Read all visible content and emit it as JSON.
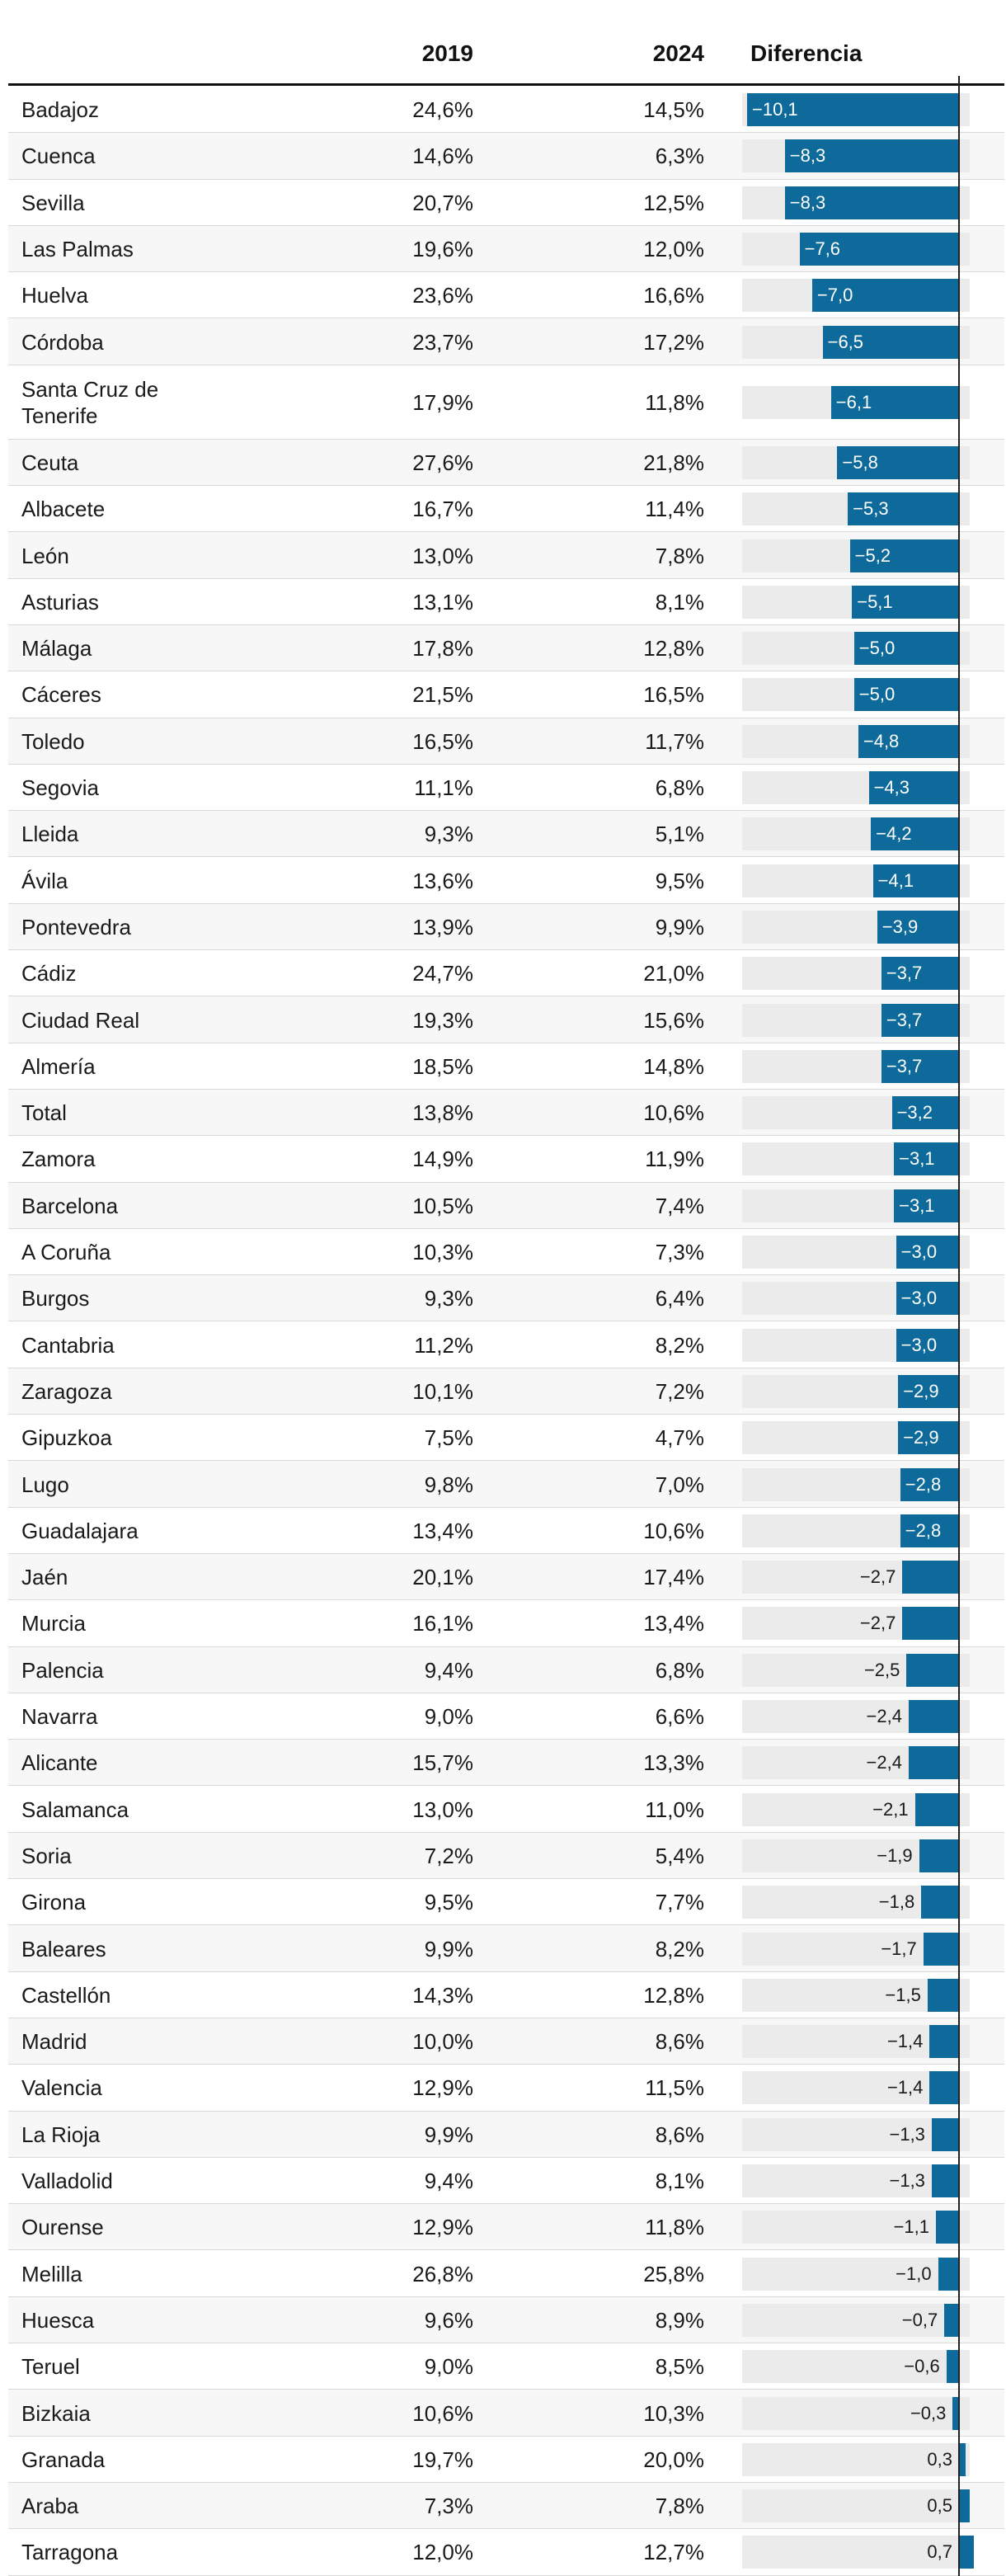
{
  "chart_data": {
    "type": "table",
    "columns": [
      "",
      "2019",
      "2024",
      "Diferencia"
    ],
    "rows": [
      {
        "name": "Badajoz",
        "y2019": "24,6%",
        "y2024": "14,5%",
        "diff": -10.1,
        "diff_label": "−10,1"
      },
      {
        "name": "Cuenca",
        "y2019": "14,6%",
        "y2024": "6,3%",
        "diff": -8.3,
        "diff_label": "−8,3"
      },
      {
        "name": "Sevilla",
        "y2019": "20,7%",
        "y2024": "12,5%",
        "diff": -8.3,
        "diff_label": "−8,3"
      },
      {
        "name": "Las Palmas",
        "y2019": "19,6%",
        "y2024": "12,0%",
        "diff": -7.6,
        "diff_label": "−7,6"
      },
      {
        "name": "Huelva",
        "y2019": "23,6%",
        "y2024": "16,6%",
        "diff": -7.0,
        "diff_label": "−7,0"
      },
      {
        "name": "Córdoba",
        "y2019": "23,7%",
        "y2024": "17,2%",
        "diff": -6.5,
        "diff_label": "−6,5"
      },
      {
        "name": "Santa Cruz de\nTenerife",
        "y2019": "17,9%",
        "y2024": "11,8%",
        "diff": -6.1,
        "diff_label": "−6,1"
      },
      {
        "name": "Ceuta",
        "y2019": "27,6%",
        "y2024": "21,8%",
        "diff": -5.8,
        "diff_label": "−5,8"
      },
      {
        "name": "Albacete",
        "y2019": "16,7%",
        "y2024": "11,4%",
        "diff": -5.3,
        "diff_label": "−5,3"
      },
      {
        "name": "León",
        "y2019": "13,0%",
        "y2024": "7,8%",
        "diff": -5.2,
        "diff_label": "−5,2"
      },
      {
        "name": "Asturias",
        "y2019": "13,1%",
        "y2024": "8,1%",
        "diff": -5.1,
        "diff_label": "−5,1"
      },
      {
        "name": "Málaga",
        "y2019": "17,8%",
        "y2024": "12,8%",
        "diff": -5.0,
        "diff_label": "−5,0"
      },
      {
        "name": "Cáceres",
        "y2019": "21,5%",
        "y2024": "16,5%",
        "diff": -5.0,
        "diff_label": "−5,0"
      },
      {
        "name": "Toledo",
        "y2019": "16,5%",
        "y2024": "11,7%",
        "diff": -4.8,
        "diff_label": "−4,8"
      },
      {
        "name": "Segovia",
        "y2019": "11,1%",
        "y2024": "6,8%",
        "diff": -4.3,
        "diff_label": "−4,3"
      },
      {
        "name": "Lleida",
        "y2019": "9,3%",
        "y2024": "5,1%",
        "diff": -4.2,
        "diff_label": "−4,2"
      },
      {
        "name": "Ávila",
        "y2019": "13,6%",
        "y2024": "9,5%",
        "diff": -4.1,
        "diff_label": "−4,1"
      },
      {
        "name": "Pontevedra",
        "y2019": "13,9%",
        "y2024": "9,9%",
        "diff": -3.9,
        "diff_label": "−3,9"
      },
      {
        "name": "Cádiz",
        "y2019": "24,7%",
        "y2024": "21,0%",
        "diff": -3.7,
        "diff_label": "−3,7"
      },
      {
        "name": "Ciudad Real",
        "y2019": "19,3%",
        "y2024": "15,6%",
        "diff": -3.7,
        "diff_label": "−3,7"
      },
      {
        "name": "Almería",
        "y2019": "18,5%",
        "y2024": "14,8%",
        "diff": -3.7,
        "diff_label": "−3,7"
      },
      {
        "name": "Total",
        "y2019": "13,8%",
        "y2024": "10,6%",
        "diff": -3.2,
        "diff_label": "−3,2"
      },
      {
        "name": "Zamora",
        "y2019": "14,9%",
        "y2024": "11,9%",
        "diff": -3.1,
        "diff_label": "−3,1"
      },
      {
        "name": "Barcelona",
        "y2019": "10,5%",
        "y2024": "7,4%",
        "diff": -3.1,
        "diff_label": "−3,1"
      },
      {
        "name": "A Coruña",
        "y2019": "10,3%",
        "y2024": "7,3%",
        "diff": -3.0,
        "diff_label": "−3,0"
      },
      {
        "name": "Burgos",
        "y2019": "9,3%",
        "y2024": "6,4%",
        "diff": -3.0,
        "diff_label": "−3,0"
      },
      {
        "name": "Cantabria",
        "y2019": "11,2%",
        "y2024": "8,2%",
        "diff": -3.0,
        "diff_label": "−3,0"
      },
      {
        "name": "Zaragoza",
        "y2019": "10,1%",
        "y2024": "7,2%",
        "diff": -2.9,
        "diff_label": "−2,9"
      },
      {
        "name": "Gipuzkoa",
        "y2019": "7,5%",
        "y2024": "4,7%",
        "diff": -2.9,
        "diff_label": "−2,9"
      },
      {
        "name": "Lugo",
        "y2019": "9,8%",
        "y2024": "7,0%",
        "diff": -2.8,
        "diff_label": "−2,8"
      },
      {
        "name": "Guadalajara",
        "y2019": "13,4%",
        "y2024": "10,6%",
        "diff": -2.8,
        "diff_label": "−2,8"
      },
      {
        "name": "Jaén",
        "y2019": "20,1%",
        "y2024": "17,4%",
        "diff": -2.7,
        "diff_label": "−2,7"
      },
      {
        "name": "Murcia",
        "y2019": "16,1%",
        "y2024": "13,4%",
        "diff": -2.7,
        "diff_label": "−2,7"
      },
      {
        "name": "Palencia",
        "y2019": "9,4%",
        "y2024": "6,8%",
        "diff": -2.5,
        "diff_label": "−2,5"
      },
      {
        "name": "Navarra",
        "y2019": "9,0%",
        "y2024": "6,6%",
        "diff": -2.4,
        "diff_label": "−2,4"
      },
      {
        "name": "Alicante",
        "y2019": "15,7%",
        "y2024": "13,3%",
        "diff": -2.4,
        "diff_label": "−2,4"
      },
      {
        "name": "Salamanca",
        "y2019": "13,0%",
        "y2024": "11,0%",
        "diff": -2.1,
        "diff_label": "−2,1"
      },
      {
        "name": "Soria",
        "y2019": "7,2%",
        "y2024": "5,4%",
        "diff": -1.9,
        "diff_label": "−1,9"
      },
      {
        "name": "Girona",
        "y2019": "9,5%",
        "y2024": "7,7%",
        "diff": -1.8,
        "diff_label": "−1,8"
      },
      {
        "name": "Baleares",
        "y2019": "9,9%",
        "y2024": "8,2%",
        "diff": -1.7,
        "diff_label": "−1,7"
      },
      {
        "name": "Castellón",
        "y2019": "14,3%",
        "y2024": "12,8%",
        "diff": -1.5,
        "diff_label": "−1,5"
      },
      {
        "name": "Madrid",
        "y2019": "10,0%",
        "y2024": "8,6%",
        "diff": -1.4,
        "diff_label": "−1,4"
      },
      {
        "name": "Valencia",
        "y2019": "12,9%",
        "y2024": "11,5%",
        "diff": -1.4,
        "diff_label": "−1,4"
      },
      {
        "name": "La Rioja",
        "y2019": "9,9%",
        "y2024": "8,6%",
        "diff": -1.3,
        "diff_label": "−1,3"
      },
      {
        "name": "Valladolid",
        "y2019": "9,4%",
        "y2024": "8,1%",
        "diff": -1.3,
        "diff_label": "−1,3"
      },
      {
        "name": "Ourense",
        "y2019": "12,9%",
        "y2024": "11,8%",
        "diff": -1.1,
        "diff_label": "−1,1"
      },
      {
        "name": "Melilla",
        "y2019": "26,8%",
        "y2024": "25,8%",
        "diff": -1.0,
        "diff_label": "−1,0"
      },
      {
        "name": "Huesca",
        "y2019": "9,6%",
        "y2024": "8,9%",
        "diff": -0.7,
        "diff_label": "−0,7"
      },
      {
        "name": "Teruel",
        "y2019": "9,0%",
        "y2024": "8,5%",
        "diff": -0.6,
        "diff_label": "−0,6"
      },
      {
        "name": "Bizkaia",
        "y2019": "10,6%",
        "y2024": "10,3%",
        "diff": -0.3,
        "diff_label": "−0,3"
      },
      {
        "name": "Granada",
        "y2019": "19,7%",
        "y2024": "20,0%",
        "diff": 0.3,
        "diff_label": "0,3"
      },
      {
        "name": "Araba",
        "y2019": "7,3%",
        "y2024": "7,8%",
        "diff": 0.5,
        "diff_label": "0,5"
      },
      {
        "name": "Tarragona",
        "y2019": "12,0%",
        "y2024": "12,7%",
        "diff": 0.7,
        "diff_label": "0,7"
      }
    ],
    "diff_range": [
      -10.1,
      0.7
    ],
    "colors": {
      "bar": "#0d6a9a",
      "track": "#ebebeb",
      "row_alt": "#f7f7f7",
      "zero_line": "#222222"
    }
  }
}
